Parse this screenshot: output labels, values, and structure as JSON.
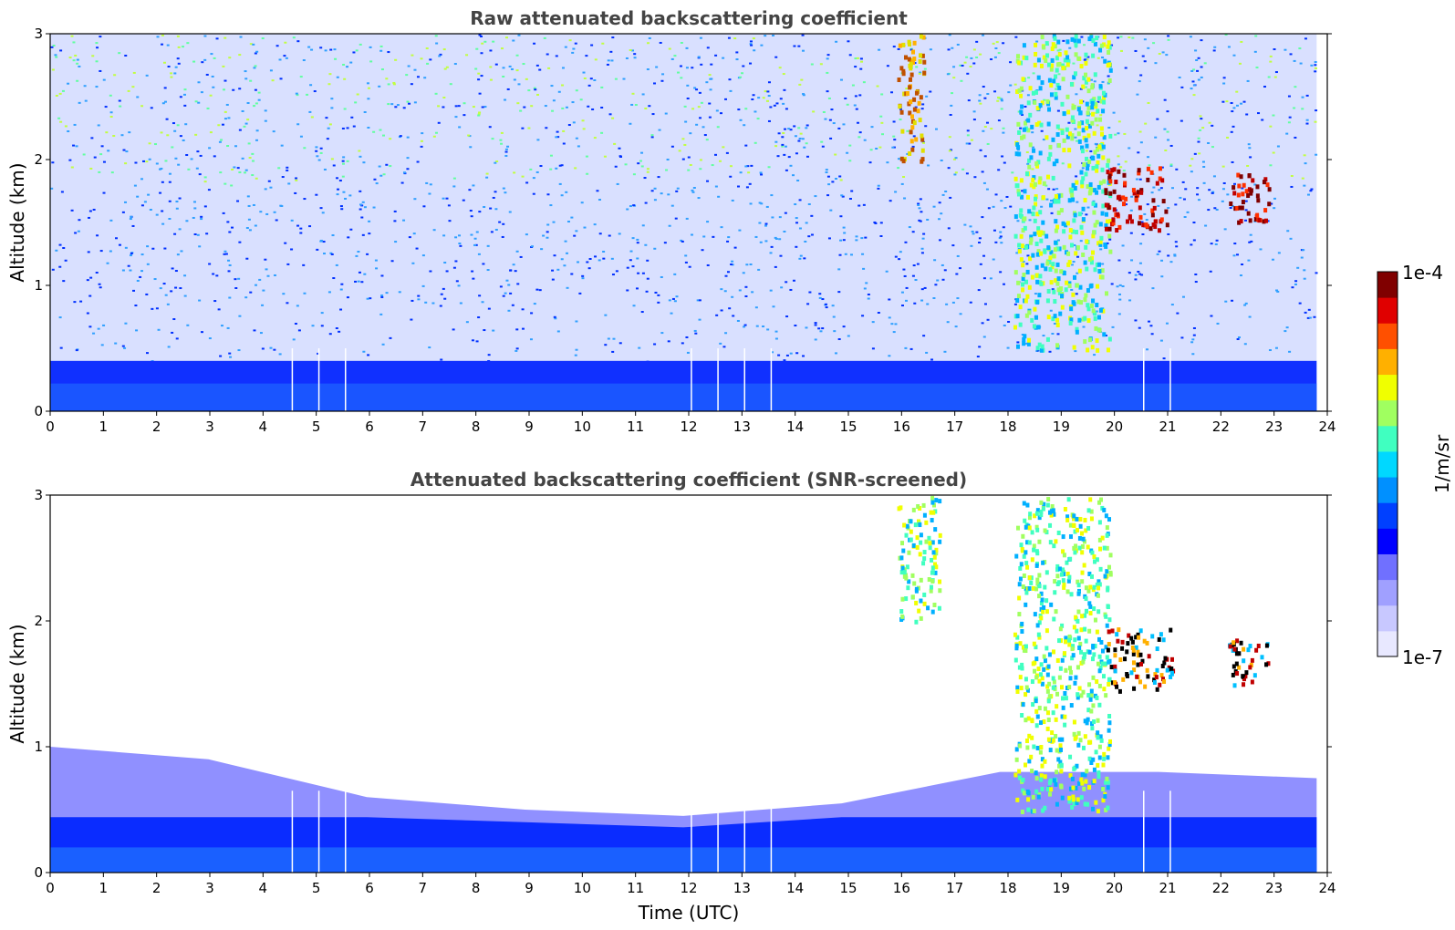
{
  "chart_data": [
    {
      "type": "heatmap",
      "title": "Raw attenuated backscattering coefficient",
      "xlabel": "",
      "ylabel": "Altitude (km)",
      "xlim": [
        0,
        24
      ],
      "ylim": [
        0,
        3
      ],
      "x_ticks": [
        "0",
        "1",
        "2",
        "3",
        "4",
        "5",
        "6",
        "7",
        "8",
        "9",
        "10",
        "11",
        "12",
        "13",
        "14",
        "15",
        "16",
        "17",
        "18",
        "19",
        "20",
        "21",
        "22",
        "23",
        "24"
      ],
      "y_ticks": [
        "0",
        "1",
        "2",
        "3"
      ],
      "colorscale": "jet (log)",
      "data_gaps_hours": [
        4.55,
        5.05,
        5.55,
        12.05,
        12.55,
        13.05,
        13.55,
        20.55,
        21.05
      ],
      "features": [
        {
          "desc": "boundary layer",
          "x_range": [
            0,
            23.8
          ],
          "alt_top_km": 0.4,
          "level": "low"
        },
        {
          "desc": "noise-dominated signal aloft",
          "x_range": [
            0,
            23.8
          ],
          "alt_range_km": [
            0.4,
            3.0
          ],
          "level": "noisy"
        },
        {
          "desc": "cloud",
          "x_range": [
            15.9,
            16.4
          ],
          "alt_range_km": [
            2.0,
            3.0
          ],
          "level": "high"
        },
        {
          "desc": "cloud",
          "x_range": [
            18.1,
            19.9
          ],
          "alt_range_km": [
            0.5,
            3.0
          ],
          "level": "medium-high"
        },
        {
          "desc": "cloud",
          "x_range": [
            19.8,
            21.0
          ],
          "alt_range_km": [
            1.45,
            1.95
          ],
          "level": "very high"
        },
        {
          "desc": "cloud",
          "x_range": [
            22.1,
            22.9
          ],
          "alt_range_km": [
            1.5,
            1.9
          ],
          "level": "very high"
        }
      ]
    },
    {
      "type": "heatmap",
      "title": "Attenuated backscattering coefficient (SNR-screened)",
      "xlabel": "Time (UTC)",
      "ylabel": "Altitude (km)",
      "xlim": [
        0,
        24
      ],
      "ylim": [
        0,
        3
      ],
      "x_ticks": [
        "0",
        "1",
        "2",
        "3",
        "4",
        "5",
        "6",
        "7",
        "8",
        "9",
        "10",
        "11",
        "12",
        "13",
        "14",
        "15",
        "16",
        "17",
        "18",
        "19",
        "20",
        "21",
        "22",
        "23",
        "24"
      ],
      "y_ticks": [
        "0",
        "1",
        "2",
        "3"
      ],
      "colorscale": "jet (log)",
      "data_gaps_hours": [
        4.55,
        5.05,
        5.55,
        12.05,
        12.55,
        13.05,
        13.55,
        20.55,
        21.05
      ],
      "features": [
        {
          "desc": "boundary layer (screened)",
          "x_range": [
            0,
            23.8
          ],
          "alt_top_km_varies": [
            1.0,
            0.9,
            0.6,
            0.5,
            0.45,
            0.55,
            0.8,
            0.8,
            0.75
          ],
          "level": "low"
        },
        {
          "desc": "cloud",
          "x_range": [
            15.9,
            16.7
          ],
          "alt_range_km": [
            2.0,
            3.0
          ],
          "level": "medium-high"
        },
        {
          "desc": "cloud",
          "x_range": [
            18.1,
            19.9
          ],
          "alt_range_km": [
            0.5,
            3.0
          ],
          "level": "medium-high"
        },
        {
          "desc": "cloud (signal-saturated)",
          "x_range": [
            19.8,
            21.1
          ],
          "alt_range_km": [
            1.45,
            1.95
          ],
          "level": "saturated"
        },
        {
          "desc": "cloud (signal-saturated)",
          "x_range": [
            22.1,
            22.9
          ],
          "alt_range_km": [
            1.5,
            1.9
          ],
          "level": "saturated"
        }
      ]
    }
  ],
  "colorbar": {
    "max_label": "1e-4",
    "min_label": "1e-7",
    "unit_label": "1/m/sr",
    "colors": [
      "#e8e8ff",
      "#c8c8ff",
      "#a0a0ff",
      "#7070ff",
      "#0000ff",
      "#0040ff",
      "#0090ff",
      "#00d8ff",
      "#40ffc0",
      "#a0ff60",
      "#f0ff00",
      "#ffb000",
      "#ff5000",
      "#e00000",
      "#800000"
    ]
  }
}
